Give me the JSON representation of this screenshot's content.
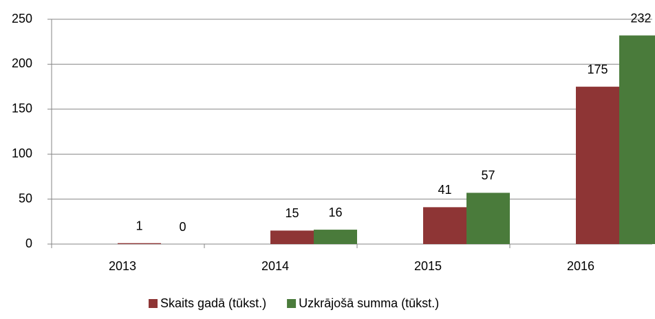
{
  "chart_data": {
    "type": "bar",
    "categories": [
      "2013",
      "2014",
      "2015",
      "2016"
    ],
    "series": [
      {
        "name": "Skaits gadā (tūkst.)",
        "color": "#8e3535",
        "values": [
          1,
          15,
          41,
          175
        ]
      },
      {
        "name": "Uzkrājošā summa (tūkst.)",
        "color": "#4a7b3b",
        "values": [
          0,
          16,
          57,
          232
        ]
      }
    ],
    "ylim": [
      0,
      250
    ],
    "yticks": [
      0,
      50,
      100,
      150,
      200,
      250
    ],
    "grid": true,
    "legend": "bottom"
  }
}
